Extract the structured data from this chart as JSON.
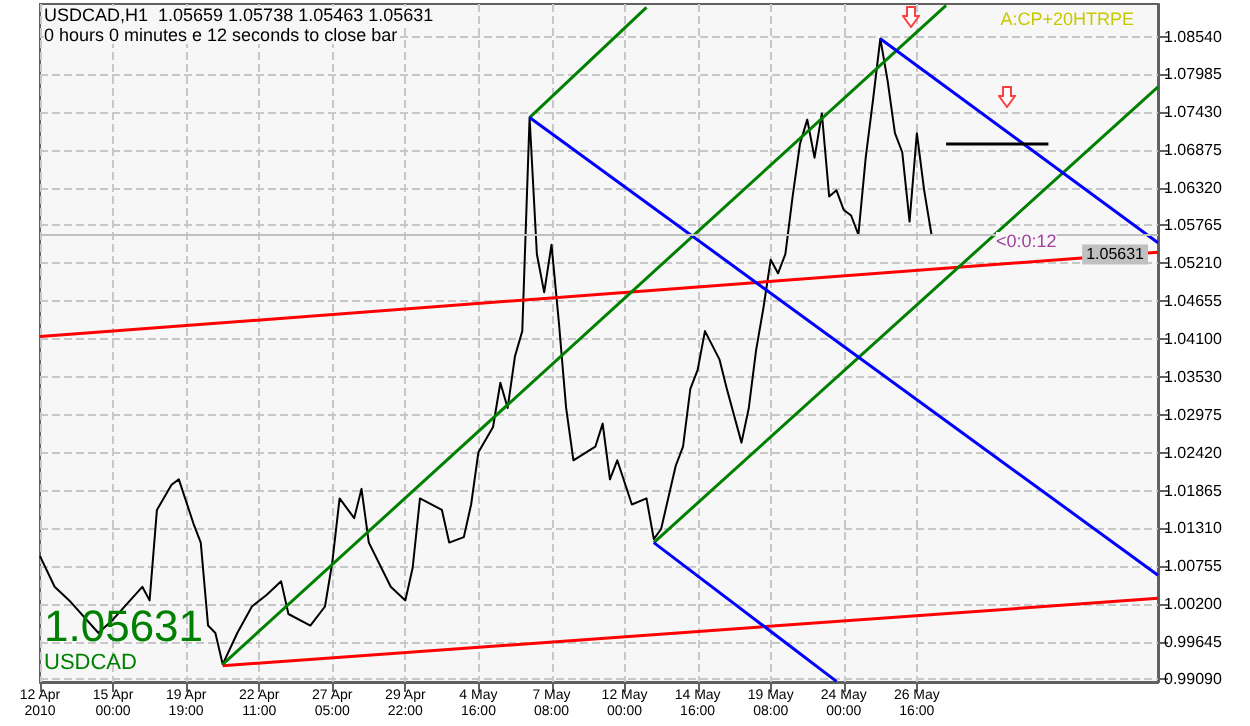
{
  "chart_data": {
    "type": "line",
    "annotations": [
      "USDCAD,H1  1.05659 1.05738 1.05463 1.05631",
      "0 hours 0 minutes e 12 seconds to close bar",
      "A:CP+20HTRPE",
      "<0:0:12",
      "1.05631",
      "USDCAD"
    ],
    "categories": [
      "12 Apr 2010",
      null,
      null,
      null,
      null,
      null,
      null,
      null,
      null,
      null,
      "15 Apr 00:00",
      null,
      null,
      null,
      null,
      null,
      null,
      null,
      null,
      null,
      "19 Apr 19:00",
      null,
      null,
      null,
      null,
      null,
      null,
      null,
      null,
      null,
      "22 Apr 11:00",
      null,
      null,
      null,
      null,
      null,
      null,
      null,
      null,
      null,
      "27 Apr 05:00",
      null,
      null,
      null,
      null,
      null,
      null,
      null,
      null,
      null,
      "29 Apr 22:00",
      null,
      null,
      null,
      null,
      null,
      null,
      null,
      null,
      null,
      "4 May 16:00",
      null,
      null,
      null,
      null,
      null,
      null,
      null,
      null,
      null,
      "7 May 08:00",
      null,
      null,
      null,
      null,
      null,
      null,
      null,
      null,
      null,
      "12 May 00:00",
      null,
      null,
      null,
      null,
      null,
      null,
      null,
      null,
      null,
      "14 May 16:00",
      null,
      null,
      null,
      null,
      null,
      null,
      null,
      null,
      null,
      "19 May 08:00",
      null,
      null,
      null,
      null,
      null,
      null,
      null,
      null,
      null,
      "24 May 00:00",
      null,
      null,
      null,
      null,
      null,
      null,
      null,
      null,
      null,
      "26 May 16:00",
      null,
      null,
      null,
      null,
      null,
      null,
      null,
      null,
      null,
      null,
      null,
      null,
      null,
      null,
      null,
      null,
      null,
      null,
      null,
      null,
      null,
      null,
      null,
      null,
      null,
      null,
      null,
      null,
      null,
      null,
      null,
      null,
      null
    ],
    "ylim": [
      0.9905,
      1.0902
    ],
    "yticks": [
      {
        "value": 0.9909,
        "label": "0.99090"
      },
      {
        "value": 0.99645,
        "label": "0.99645"
      },
      {
        "value": 1.002,
        "label": "1.00200"
      },
      {
        "value": 1.00755,
        "label": "1.00755"
      },
      {
        "value": 1.0131,
        "label": "1.01310"
      },
      {
        "value": 1.01865,
        "label": "1.01865"
      },
      {
        "value": 1.0242,
        "label": "1.02420"
      },
      {
        "value": 1.02975,
        "label": "1.02975"
      },
      {
        "value": 1.0353,
        "label": "1.03530"
      },
      {
        "value": 1.041,
        "label": "1.04100"
      },
      {
        "value": 1.04655,
        "label": "1.04655"
      },
      {
        "value": 1.0521,
        "label": "1.05210"
      },
      {
        "value": 1.05765,
        "label": "1.05765"
      },
      {
        "value": 1.0632,
        "label": "1.06320"
      },
      {
        "value": 1.06875,
        "label": "1.06875"
      },
      {
        "value": 1.0743,
        "label": "1.07430"
      },
      {
        "value": 1.07985,
        "label": "1.07985"
      },
      {
        "value": 1.0854,
        "label": "1.08540"
      }
    ],
    "grid": true,
    "marker": "none",
    "line_style": "solid",
    "ref_lines": [
      {
        "axis": "y",
        "value": 1.05631,
        "label": "1.05631",
        "color": "#c0c0c0"
      }
    ],
    "series": [
      {
        "color": "#000000",
        "values": [
          1.009,
          null,
          1.0045,
          null,
          1.0025,
          null,
          null,
          null,
          0.9977,
          null,
          0.9997,
          null,
          null,
          null,
          1.0045,
          1.0025,
          1.0158,
          null,
          1.0195,
          1.0203,
          null,
          1.0138,
          1.011,
          0.9988,
          0.9977,
          0.9931,
          null,
          0.9977,
          null,
          1.0016,
          null,
          1.0033,
          null,
          1.0053,
          1.0005,
          null,
          null,
          0.9988,
          null,
          1.0016,
          1.0081,
          1.0175,
          null,
          1.0146,
          1.0189,
          1.011,
          null,
          null,
          1.0045,
          null,
          1.0025,
          1.0073,
          1.0175,
          null,
          null,
          1.0158,
          1.011,
          null,
          1.0118,
          1.0166,
          1.0243,
          null,
          1.028,
          1.0345,
          1.0308,
          1.0384,
          1.0421,
          1.0735,
          1.0534,
          1.0478,
          1.0548,
          1.0435,
          1.0308,
          1.0231,
          null,
          null,
          1.0251,
          1.0285,
          1.0203,
          1.0231,
          null,
          1.0166,
          null,
          1.0175,
          1.0115,
          1.013,
          null,
          1.0223,
          1.0251,
          1.0336,
          1.0364,
          1.0421,
          null,
          1.0379,
          1.0336,
          null,
          1.0257,
          1.0308,
          1.0393,
          1.0455,
          1.0526,
          1.0506,
          1.0534,
          1.0619,
          1.0696,
          1.0732,
          1.0676,
          1.0741,
          1.0619,
          1.0628,
          1.0599,
          1.0591,
          1.0563,
          1.0676,
          1.0761,
          1.0851,
          1.0789,
          1.0712,
          1.0684,
          1.0582,
          1.0712,
          1.0628,
          1.0563,
          null,
          null,
          null,
          null,
          null,
          null,
          null,
          null,
          null,
          null,
          null,
          null,
          null,
          null,
          null,
          null,
          null,
          null,
          null,
          null,
          null,
          null,
          null,
          null,
          null,
          null,
          null,
          null,
          null,
          null,
          null
        ]
      },
      {
        "color": "#ff0000",
        "values": [
          1.0413,
          null,
          null,
          null,
          null,
          null,
          null,
          null,
          null,
          null,
          null,
          null,
          null,
          null,
          null,
          null,
          null,
          null,
          null,
          null,
          null,
          null,
          null,
          null,
          null,
          null,
          null,
          null,
          null,
          null,
          null,
          null,
          null,
          null,
          null,
          null,
          null,
          null,
          null,
          null,
          null,
          null,
          null,
          null,
          null,
          null,
          null,
          null,
          null,
          null,
          null,
          null,
          null,
          null,
          null,
          null,
          null,
          null,
          null,
          null,
          null,
          null,
          null,
          null,
          null,
          null,
          null,
          null,
          null,
          null,
          null,
          null,
          null,
          null,
          null,
          null,
          null,
          null,
          null,
          null,
          null,
          null,
          null,
          null,
          null,
          null,
          null,
          null,
          null,
          null,
          null,
          null,
          null,
          null,
          null,
          null,
          null,
          null,
          null,
          null,
          null,
          null,
          null,
          null,
          null,
          null,
          null,
          null,
          null,
          null,
          null,
          null,
          null,
          null,
          null,
          null,
          null,
          null,
          null,
          null,
          null,
          null,
          null,
          null,
          null,
          null,
          null,
          null,
          null,
          null,
          null,
          null,
          null,
          null,
          null,
          null,
          null,
          null,
          null,
          null,
          null,
          null,
          null,
          null,
          null,
          null,
          null,
          null,
          null,
          null,
          null,
          null,
          null,
          1.0537
        ]
      },
      {
        "color": "#ff0000",
        "values": [
          null,
          null,
          null,
          null,
          null,
          null,
          null,
          null,
          null,
          null,
          null,
          null,
          null,
          null,
          null,
          null,
          null,
          null,
          null,
          null,
          null,
          null,
          null,
          null,
          null,
          0.9929,
          null,
          null,
          null,
          null,
          null,
          null,
          null,
          null,
          null,
          null,
          null,
          null,
          null,
          null,
          null,
          null,
          null,
          null,
          null,
          null,
          null,
          null,
          null,
          null,
          null,
          null,
          null,
          null,
          null,
          null,
          null,
          null,
          null,
          null,
          null,
          null,
          null,
          null,
          null,
          null,
          null,
          null,
          null,
          null,
          null,
          null,
          null,
          null,
          null,
          null,
          null,
          null,
          null,
          null,
          null,
          null,
          null,
          null,
          null,
          null,
          null,
          null,
          null,
          null,
          null,
          null,
          null,
          null,
          null,
          null,
          null,
          null,
          null,
          null,
          null,
          null,
          null,
          null,
          null,
          null,
          null,
          null,
          null,
          null,
          null,
          null,
          null,
          null,
          null,
          null,
          null,
          null,
          null,
          null,
          null,
          null,
          null,
          null,
          null,
          null,
          null,
          null,
          null,
          null,
          null,
          null,
          null,
          null,
          null,
          null,
          null,
          null,
          null,
          null,
          null,
          null,
          null,
          null,
          null,
          null,
          null,
          null,
          null,
          null,
          null,
          null,
          null,
          1.0028
        ]
      },
      {
        "color": "#008000",
        "values": [
          null,
          null,
          null,
          null,
          null,
          null,
          null,
          null,
          null,
          null,
          null,
          null,
          null,
          null,
          null,
          null,
          null,
          null,
          null,
          null,
          null,
          null,
          null,
          null,
          null,
          null,
          null,
          null,
          null,
          null,
          null,
          null,
          null,
          null,
          null,
          null,
          null,
          null,
          null,
          null,
          null,
          null,
          null,
          null,
          null,
          null,
          null,
          null,
          null,
          null,
          null,
          null,
          null,
          null,
          null,
          null,
          null,
          null,
          null,
          null,
          null,
          null,
          null,
          null,
          null,
          null,
          null,
          1.0735,
          null,
          null,
          null,
          null,
          null,
          null,
          null,
          null,
          null,
          null,
          null,
          null,
          null,
          null,
          null,
          1.0897,
          null,
          null,
          null,
          null,
          null,
          null,
          null,
          null,
          null,
          null,
          null,
          null,
          null,
          null,
          null,
          null,
          null,
          null,
          null,
          null,
          null,
          null,
          null,
          null,
          null,
          null,
          null,
          null,
          null,
          null,
          null,
          null,
          null,
          null,
          null,
          null,
          null,
          null,
          null,
          null,
          null,
          null,
          null,
          null,
          null,
          null,
          null,
          null,
          null,
          null,
          null,
          null,
          null,
          null,
          null,
          null,
          null,
          null,
          null,
          null,
          null,
          null,
          null,
          null,
          null,
          null,
          null,
          null,
          null,
          null
        ]
      },
      {
        "color": "#008000",
        "values": [
          null,
          null,
          null,
          null,
          null,
          null,
          null,
          null,
          null,
          null,
          null,
          null,
          null,
          null,
          null,
          null,
          null,
          null,
          null,
          null,
          null,
          null,
          null,
          null,
          null,
          0.9931,
          null,
          null,
          null,
          null,
          null,
          null,
          null,
          null,
          null,
          null,
          null,
          null,
          null,
          null,
          null,
          null,
          null,
          null,
          null,
          null,
          null,
          null,
          null,
          null,
          null,
          null,
          null,
          null,
          null,
          null,
          null,
          null,
          null,
          null,
          null,
          null,
          null,
          null,
          null,
          null,
          null,
          null,
          null,
          null,
          null,
          null,
          null,
          null,
          null,
          null,
          null,
          null,
          null,
          null,
          null,
          null,
          null,
          null,
          null,
          null,
          null,
          null,
          null,
          null,
          null,
          null,
          null,
          null,
          null,
          null,
          null,
          null,
          null,
          null,
          null,
          null,
          null,
          null,
          null,
          null,
          null,
          null,
          null,
          null,
          null,
          null,
          null,
          null,
          null,
          null,
          null,
          null,
          null,
          null,
          null,
          null,
          null,
          null,
          1.09,
          null,
          null,
          null,
          null,
          null,
          null,
          null,
          null,
          null,
          null,
          null,
          null,
          null,
          null,
          null,
          null,
          null,
          null,
          null,
          null,
          null,
          null,
          null,
          null,
          null,
          null,
          null,
          null,
          null
        ]
      },
      {
        "color": "#008000",
        "values": [
          null,
          null,
          null,
          null,
          null,
          null,
          null,
          null,
          null,
          null,
          null,
          null,
          null,
          null,
          null,
          null,
          null,
          null,
          null,
          null,
          null,
          null,
          null,
          null,
          null,
          null,
          null,
          null,
          null,
          null,
          null,
          null,
          null,
          null,
          null,
          null,
          null,
          null,
          null,
          null,
          null,
          null,
          null,
          null,
          null,
          null,
          null,
          null,
          null,
          null,
          null,
          null,
          null,
          null,
          null,
          null,
          null,
          null,
          null,
          null,
          null,
          null,
          null,
          null,
          null,
          null,
          null,
          null,
          null,
          null,
          null,
          null,
          null,
          null,
          null,
          null,
          null,
          null,
          null,
          null,
          null,
          null,
          null,
          null,
          1.011,
          null,
          null,
          null,
          null,
          null,
          null,
          null,
          null,
          null,
          null,
          null,
          null,
          null,
          null,
          null,
          null,
          null,
          null,
          null,
          null,
          null,
          null,
          null,
          null,
          null,
          null,
          null,
          null,
          null,
          null,
          null,
          null,
          null,
          null,
          null,
          null,
          null,
          null,
          null,
          null,
          null,
          null,
          null,
          null,
          null,
          null,
          null,
          null,
          null,
          null,
          null,
          null,
          null,
          null,
          null,
          null,
          null,
          null,
          null,
          null,
          null,
          null,
          null,
          null,
          null,
          null,
          null,
          null,
          1.078
        ]
      },
      {
        "color": "#0000ff",
        "values": [
          null,
          null,
          null,
          null,
          null,
          null,
          null,
          null,
          null,
          null,
          null,
          null,
          null,
          null,
          null,
          null,
          null,
          null,
          null,
          null,
          null,
          null,
          null,
          null,
          null,
          null,
          null,
          null,
          null,
          null,
          null,
          null,
          null,
          null,
          null,
          null,
          null,
          null,
          null,
          null,
          null,
          null,
          null,
          null,
          null,
          null,
          null,
          null,
          null,
          null,
          null,
          null,
          null,
          null,
          null,
          null,
          null,
          null,
          null,
          null,
          null,
          null,
          null,
          null,
          null,
          null,
          null,
          null,
          null,
          null,
          null,
          null,
          null,
          null,
          null,
          null,
          null,
          null,
          null,
          null,
          null,
          null,
          null,
          null,
          null,
          null,
          null,
          null,
          null,
          null,
          null,
          null,
          null,
          null,
          null,
          null,
          null,
          null,
          null,
          null,
          null,
          null,
          null,
          null,
          null,
          null,
          null,
          null,
          null,
          null,
          null,
          null,
          null,
          null,
          null,
          1.0851,
          null,
          null,
          null,
          null,
          null,
          null,
          null,
          null,
          null,
          null,
          null,
          null,
          null,
          null,
          null,
          null,
          null,
          null,
          null,
          null,
          null,
          null,
          null,
          null,
          null,
          null,
          null,
          null,
          null,
          null,
          null,
          null,
          null,
          null,
          null,
          null,
          null,
          1.0551
        ]
      },
      {
        "color": "#0000ff",
        "values": [
          null,
          null,
          null,
          null,
          null,
          null,
          null,
          null,
          null,
          null,
          null,
          null,
          null,
          null,
          null,
          null,
          null,
          null,
          null,
          null,
          null,
          null,
          null,
          null,
          null,
          null,
          null,
          null,
          null,
          null,
          null,
          null,
          null,
          null,
          null,
          null,
          null,
          null,
          null,
          null,
          null,
          null,
          null,
          null,
          null,
          null,
          null,
          null,
          null,
          null,
          null,
          null,
          null,
          null,
          null,
          null,
          null,
          null,
          null,
          null,
          null,
          null,
          null,
          null,
          null,
          null,
          null,
          1.0735,
          null,
          null,
          null,
          null,
          null,
          null,
          null,
          null,
          null,
          null,
          null,
          null,
          null,
          null,
          null,
          null,
          null,
          null,
          null,
          null,
          null,
          null,
          null,
          null,
          null,
          null,
          null,
          null,
          null,
          null,
          null,
          null,
          null,
          null,
          null,
          null,
          null,
          null,
          null,
          null,
          null,
          null,
          null,
          null,
          null,
          null,
          null,
          null,
          null,
          null,
          null,
          null,
          null,
          null,
          null,
          null,
          null,
          null,
          null,
          null,
          null,
          null,
          null,
          null,
          null,
          null,
          null,
          null,
          null,
          null,
          null,
          null,
          null,
          null,
          null,
          null,
          null,
          null,
          null,
          null,
          null,
          null,
          null,
          null,
          null,
          1.0062
        ]
      },
      {
        "color": "#0000ff",
        "values": [
          null,
          null,
          null,
          null,
          null,
          null,
          null,
          null,
          null,
          null,
          null,
          null,
          null,
          null,
          null,
          null,
          null,
          null,
          null,
          null,
          null,
          null,
          null,
          null,
          null,
          null,
          null,
          null,
          null,
          null,
          null,
          null,
          null,
          null,
          null,
          null,
          null,
          null,
          null,
          null,
          null,
          null,
          null,
          null,
          null,
          null,
          null,
          null,
          null,
          null,
          null,
          null,
          null,
          null,
          null,
          null,
          null,
          null,
          null,
          null,
          null,
          null,
          null,
          null,
          null,
          null,
          null,
          null,
          null,
          null,
          null,
          null,
          null,
          null,
          null,
          null,
          null,
          null,
          null,
          null,
          null,
          null,
          null,
          null,
          1.011,
          null,
          null,
          null,
          null,
          null,
          null,
          null,
          null,
          null,
          null,
          null,
          null,
          null,
          null,
          null,
          null,
          null,
          null,
          null,
          null,
          null,
          null,
          null,
          null,
          0.9906,
          null,
          null,
          null,
          null,
          null,
          null,
          null,
          null,
          null,
          null,
          null,
          null,
          null,
          null,
          null,
          null,
          null,
          null,
          null,
          null,
          null,
          null,
          null,
          null,
          null,
          null,
          null,
          null,
          null,
          null,
          null,
          null,
          null,
          null,
          null,
          null,
          null,
          null,
          null,
          null,
          null,
          null,
          null,
          null
        ]
      },
      {
        "color": "#000000",
        "values": [
          null,
          null,
          null,
          null,
          null,
          null,
          null,
          null,
          null,
          null,
          null,
          null,
          null,
          null,
          null,
          null,
          null,
          null,
          null,
          null,
          null,
          null,
          null,
          null,
          null,
          null,
          null,
          null,
          null,
          null,
          null,
          null,
          null,
          null,
          null,
          null,
          null,
          null,
          null,
          null,
          null,
          null,
          null,
          null,
          null,
          null,
          null,
          null,
          null,
          null,
          null,
          null,
          null,
          null,
          null,
          null,
          null,
          null,
          null,
          null,
          null,
          null,
          null,
          null,
          null,
          null,
          null,
          null,
          null,
          null,
          null,
          null,
          null,
          null,
          null,
          null,
          null,
          null,
          null,
          null,
          null,
          null,
          null,
          null,
          null,
          null,
          null,
          null,
          null,
          null,
          null,
          null,
          null,
          null,
          null,
          null,
          null,
          null,
          null,
          null,
          null,
          null,
          null,
          null,
          null,
          null,
          null,
          null,
          null,
          null,
          null,
          null,
          null,
          null,
          null,
          null,
          null,
          null,
          null,
          null,
          null,
          null,
          null,
          null,
          1.0696,
          null,
          null,
          null,
          null,
          null,
          null,
          null,
          null,
          null,
          null,
          null,
          null,
          null,
          1.0696,
          null,
          null,
          null,
          null,
          null,
          null,
          null,
          null,
          null,
          null,
          null,
          null,
          null,
          null,
          null
        ]
      }
    ]
  }
}
